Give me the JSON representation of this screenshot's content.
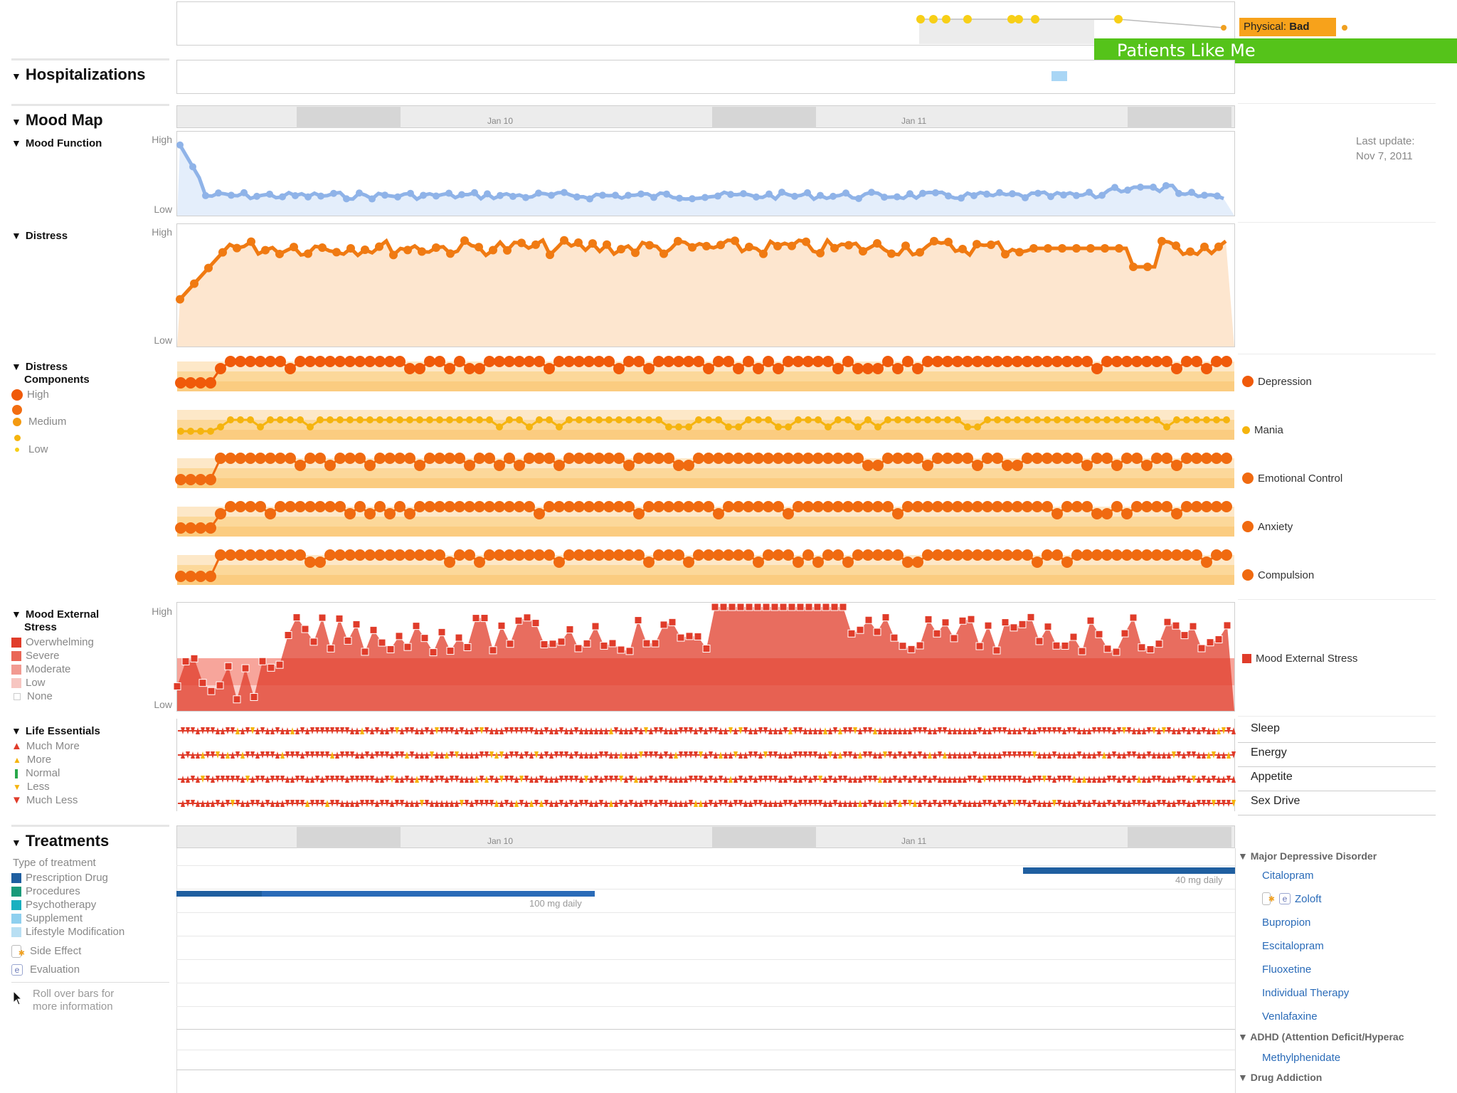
{
  "banner": {
    "label": "Patients Like Me",
    "color": "#55c31a"
  },
  "physical": {
    "prefix": "Physical:",
    "value": "Bad"
  },
  "hospitalizations": {
    "title": "Hospitalizations"
  },
  "mood_map": {
    "title": "Mood Map",
    "ticks": [
      "Jan 10",
      "Jan 11"
    ]
  },
  "mood_function": {
    "title": "Mood Function",
    "high": "High",
    "low": "Low",
    "last_update_label": "Last update:",
    "last_update_date": "Nov 7, 2011"
  },
  "distress": {
    "title": "Distress",
    "high": "High",
    "low": "Low"
  },
  "distress_components": {
    "title_line1": "Distress",
    "title_line2": "Components",
    "levels": [
      "High",
      "Medium",
      "Low"
    ],
    "series": [
      "Depression",
      "Mania",
      "Emotional Control",
      "Anxiety",
      "Compulsion"
    ]
  },
  "external_stress": {
    "title_line1": "Mood External",
    "title_line2": "Stress",
    "high": "High",
    "low": "Low",
    "levels": [
      "Overwhelming",
      "Severe",
      "Moderate",
      "Low",
      "None"
    ],
    "series_label": "Mood External Stress"
  },
  "life_essentials": {
    "title": "Life Essentials",
    "levels": [
      "Much More",
      "More",
      "Normal",
      "Less",
      "Much Less"
    ],
    "rows": [
      "Sleep",
      "Energy",
      "Appetite",
      "Sex Drive"
    ]
  },
  "treatments": {
    "title": "Treatments",
    "type_label": "Type of treatment",
    "types": [
      "Prescription Drug",
      "Procedures",
      "Psychotherapy",
      "Supplement",
      "Lifestyle Modification"
    ],
    "side_effect": "Side Effect",
    "evaluation": "Evaluation",
    "hint_line1": "Roll over bars for",
    "hint_line2": "more information",
    "ticks": [
      "Jan 10",
      "Jan 11"
    ],
    "dose_citalopram": "40 mg daily",
    "dose_zoloft": "100 mg daily",
    "groups": [
      {
        "name": "Major Depressive Disorder",
        "items": [
          "Citalopram",
          "Zoloft",
          "Bupropion",
          "Escitalopram",
          "Fluoxetine",
          "Individual Therapy",
          "Venlafaxine"
        ]
      },
      {
        "name": "ADHD (Attention Deficit/Hyperac",
        "items": [
          "Methylphenidate"
        ]
      },
      {
        "name": "Drug Addiction",
        "items": []
      }
    ]
  },
  "colors": {
    "mood_line": "#8fb3e8",
    "mood_fill": "#e4eefb",
    "distress_line": "#f07a12",
    "distress_fill": "#fde6cf",
    "stress_red": "#e03c2a",
    "drug_blue": "#1f5fa0"
  }
}
